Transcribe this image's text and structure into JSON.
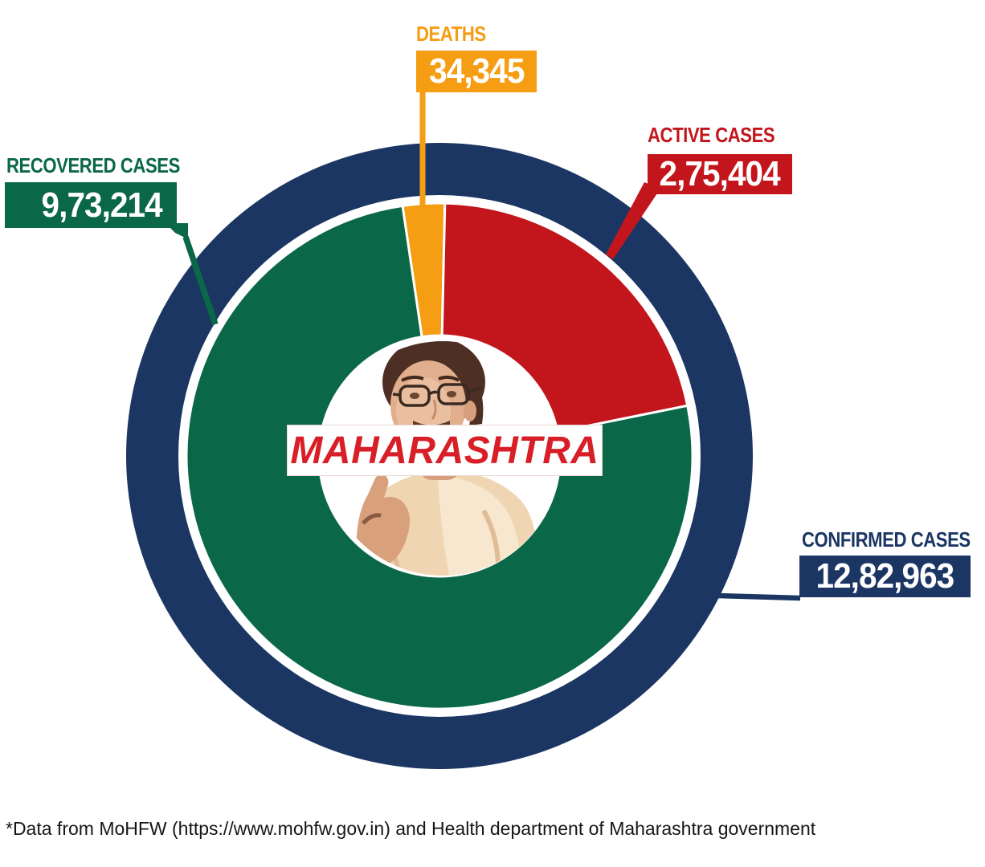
{
  "banner": {
    "text": "MAHARASHTRA",
    "text_color": "#D81E26"
  },
  "callouts": {
    "deaths": {
      "label": "DEATHS",
      "value": "34,345",
      "color": "#F59D13"
    },
    "active": {
      "label": "ACTIVE CASES",
      "value": "2,75,404",
      "color": "#C3161C"
    },
    "recovered": {
      "label": "RECOVERED CASES",
      "value": "9,73,214",
      "color": "#0A6748"
    },
    "confirmed": {
      "label": "CONFIRMED CASES",
      "value": "12,82,963",
      "color": "#1C3664"
    }
  },
  "chart_data": {
    "type": "pie",
    "title": "MAHARASHTRA",
    "categories": [
      "Deaths",
      "Active cases",
      "Recovered cases"
    ],
    "values": [
      34345,
      275404,
      973214
    ],
    "colors": [
      "#F59D13",
      "#C3161C",
      "#0A6748"
    ],
    "outer_ring": {
      "label": "Confirmed cases",
      "value": 1282963,
      "color": "#1C3664"
    },
    "layout": {
      "style": "donut-with-outer-ring",
      "start_angle_deg": -8.4,
      "clockwise": true,
      "slice_border_color": "#FFFFFF",
      "legend": "callout-labels",
      "center_image": "uddhav-thackeray-portrait"
    }
  },
  "footer": {
    "note": "*Data from MoHFW (https://www.mohfw.gov.in) and Health department of Maharashtra government"
  }
}
